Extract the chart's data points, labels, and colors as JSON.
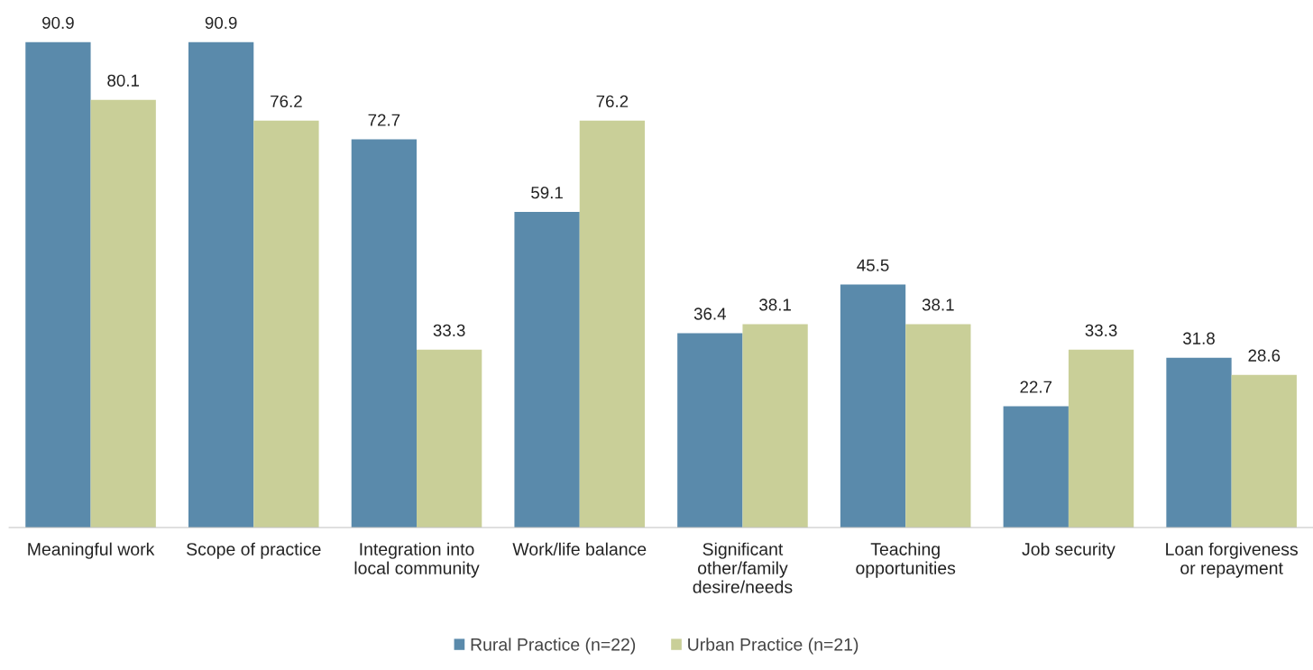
{
  "chart_data": {
    "type": "bar",
    "categories": [
      "Meaningful work",
      "Scope of practice",
      "Integration into\nlocal community",
      "Work/life balance",
      "Significant\nother/family\ndesire/needs",
      "Teaching\nopportunities",
      "Job security",
      "Loan forgiveness\nor repayment"
    ],
    "series": [
      {
        "name": "Rural Practice (n=22)",
        "color": "#5a8aab",
        "values": [
          90.9,
          90.9,
          72.7,
          59.1,
          36.4,
          45.5,
          22.7,
          31.8
        ]
      },
      {
        "name": "Urban Practice (n=21)",
        "color": "#c9cf98",
        "values": [
          80.1,
          76.2,
          33.3,
          76.2,
          38.1,
          38.1,
          33.3,
          28.6
        ]
      }
    ],
    "data_labels": true,
    "legend": "bottom",
    "grid": false,
    "tick_labels": "x"
  }
}
